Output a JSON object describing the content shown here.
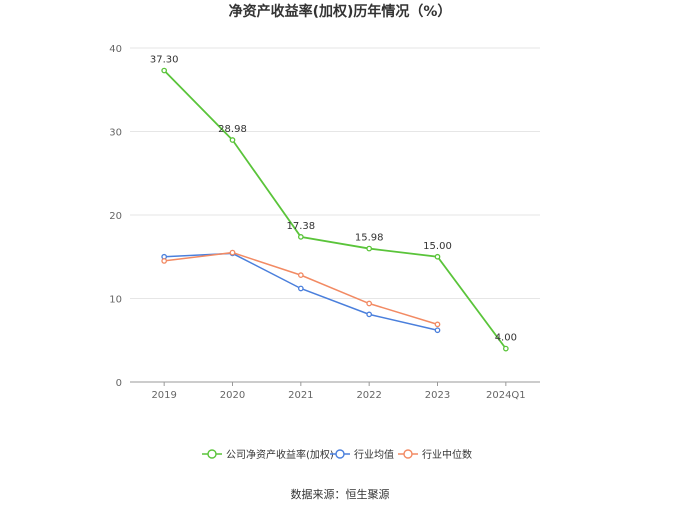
{
  "chart_data": {
    "type": "line",
    "title": "净资产收益率(加权)历年情况（%）",
    "categories": [
      "2019",
      "2020",
      "2021",
      "2022",
      "2023",
      "2024Q1"
    ],
    "ylim": [
      0,
      40
    ],
    "yticks": [
      "0",
      "10",
      "20",
      "30",
      "40"
    ],
    "grid": true,
    "legend_position": "bottom",
    "series": [
      {
        "name": "公司净资产收益率(加权)",
        "values": [
          37.3,
          28.98,
          17.38,
          15.98,
          15.0,
          4.0
        ],
        "labels": [
          "37.30",
          "28.98",
          "17.38",
          "15.98",
          "15.00",
          "4.00"
        ],
        "color": "#5ac43a"
      },
      {
        "name": "行业均值",
        "values": [
          15.0,
          15.4,
          11.2,
          8.1,
          6.2,
          null
        ],
        "color": "#4a7fdc"
      },
      {
        "name": "行业中位数",
        "values": [
          14.5,
          15.5,
          12.8,
          9.4,
          6.9,
          null
        ],
        "color": "#f28a63"
      }
    ]
  },
  "source": "数据来源：恒生聚源"
}
